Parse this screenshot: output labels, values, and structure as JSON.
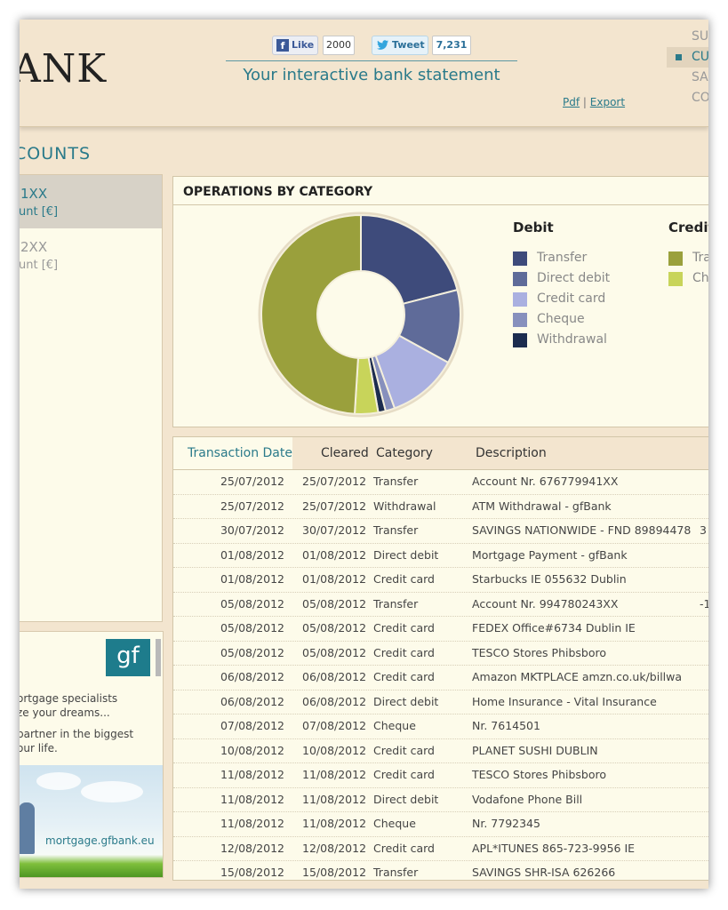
{
  "header": {
    "logo": "ANK",
    "like_label": "Like",
    "like_count": "2000",
    "tweet_label": "Tweet",
    "tweet_count": "7,231",
    "tagline": "Your interactive bank statement",
    "pdf_link": "Pdf",
    "export_link": "Export",
    "link_separator": "|"
  },
  "top_nav": [
    {
      "label": "SU"
    },
    {
      "label": "CU"
    },
    {
      "label": "SA"
    },
    {
      "label": "CO"
    }
  ],
  "section_title": "COUNTS",
  "accounts": [
    {
      "number": "1XX",
      "subtitle": "unt [€]"
    },
    {
      "number": "2XX",
      "subtitle": "unt [€]"
    }
  ],
  "ad": {
    "logo": "gf",
    "line1": "ortgage specialists",
    "line2": "ze your dreams...",
    "line3": "partner in the biggest",
    "line4": "our life.",
    "url": "mortgage.gfbank.eu"
  },
  "chart_data": {
    "type": "pie",
    "title": "OPERATIONS BY CATEGORY",
    "legend_groups": [
      {
        "name": "Debit",
        "entries": [
          {
            "label": "Transfer",
            "color": "#3e4b7b"
          },
          {
            "label": "Direct debit",
            "color": "#5f6b99"
          },
          {
            "label": "Credit card",
            "color": "#aab0e0"
          },
          {
            "label": "Cheque",
            "color": "#8790bd"
          },
          {
            "label": "Withdrawal",
            "color": "#1c2c4f"
          }
        ]
      },
      {
        "name": "Credit",
        "entries": [
          {
            "label": "Tra",
            "color": "#9aa03c"
          },
          {
            "label": "Ch",
            "color": "#c8d45a"
          }
        ]
      }
    ],
    "slices": [
      {
        "label": "Transfer (debit)",
        "value": 21,
        "color": "#3e4b7b"
      },
      {
        "label": "Direct debit",
        "value": 12,
        "color": "#5f6b99"
      },
      {
        "label": "Credit card",
        "value": 11.5,
        "color": "#aab0e0"
      },
      {
        "label": "Cheque",
        "value": 1.5,
        "color": "#8790bd"
      },
      {
        "label": "Withdrawal",
        "value": 1.2,
        "color": "#1c2c4f"
      },
      {
        "label": "Cheque (credit)",
        "value": 3.8,
        "color": "#c8d45a"
      },
      {
        "label": "Transfer (credit)",
        "value": 49,
        "color": "#9aa03c"
      }
    ]
  },
  "table": {
    "headers": {
      "date": "Transaction Date",
      "cleared": "Cleared",
      "category": "Category",
      "description": "Description"
    },
    "rows": [
      {
        "date": "25/07/2012",
        "cleared": "25/07/2012",
        "category": "Transfer",
        "description": "Account Nr. 676779941XX",
        "amount": ""
      },
      {
        "date": "25/07/2012",
        "cleared": "25/07/2012",
        "category": "Withdrawal",
        "description": "ATM Withdrawal - gfBank",
        "amount": ""
      },
      {
        "date": "30/07/2012",
        "cleared": "30/07/2012",
        "category": "Transfer",
        "description": "SAVINGS NATIONWIDE - FND 89894478",
        "amount": "3"
      },
      {
        "date": "01/08/2012",
        "cleared": "01/08/2012",
        "category": "Direct debit",
        "description": "Mortgage Payment - gfBank",
        "amount": ""
      },
      {
        "date": "01/08/2012",
        "cleared": "01/08/2012",
        "category": "Credit card",
        "description": "Starbucks IE 055632 Dublin",
        "amount": ""
      },
      {
        "date": "05/08/2012",
        "cleared": "05/08/2012",
        "category": "Transfer",
        "description": "Account Nr. 994780243XX",
        "amount": "-1"
      },
      {
        "date": "05/08/2012",
        "cleared": "05/08/2012",
        "category": "Credit card",
        "description": "FEDEX Office#6734 Dublin IE",
        "amount": ""
      },
      {
        "date": "05/08/2012",
        "cleared": "05/08/2012",
        "category": "Credit card",
        "description": "TESCO Stores Phibsboro",
        "amount": ""
      },
      {
        "date": "06/08/2012",
        "cleared": "06/08/2012",
        "category": "Credit card",
        "description": "Amazon MKTPLACE amzn.co.uk/billwa",
        "amount": ""
      },
      {
        "date": "06/08/2012",
        "cleared": "06/08/2012",
        "category": "Direct debit",
        "description": "Home Insurance - Vital Insurance",
        "amount": ""
      },
      {
        "date": "07/08/2012",
        "cleared": "07/08/2012",
        "category": "Cheque",
        "description": "Nr. 7614501",
        "amount": ""
      },
      {
        "date": "10/08/2012",
        "cleared": "10/08/2012",
        "category": "Credit card",
        "description": "PLANET SUSHI DUBLIN",
        "amount": ""
      },
      {
        "date": "11/08/2012",
        "cleared": "11/08/2012",
        "category": "Credit card",
        "description": "TESCO Stores Phibsboro",
        "amount": ""
      },
      {
        "date": "11/08/2012",
        "cleared": "11/08/2012",
        "category": "Direct debit",
        "description": "Vodafone Phone Bill",
        "amount": ""
      },
      {
        "date": "11/08/2012",
        "cleared": "11/08/2012",
        "category": "Cheque",
        "description": "Nr. 7792345",
        "amount": ""
      },
      {
        "date": "12/08/2012",
        "cleared": "12/08/2012",
        "category": "Credit card",
        "description": "APL*ITUNES 865-723-9956 IE",
        "amount": ""
      },
      {
        "date": "15/08/2012",
        "cleared": "15/08/2012",
        "category": "Transfer",
        "description": "SAVINGS SHR-ISA 626266",
        "amount": ""
      }
    ]
  }
}
